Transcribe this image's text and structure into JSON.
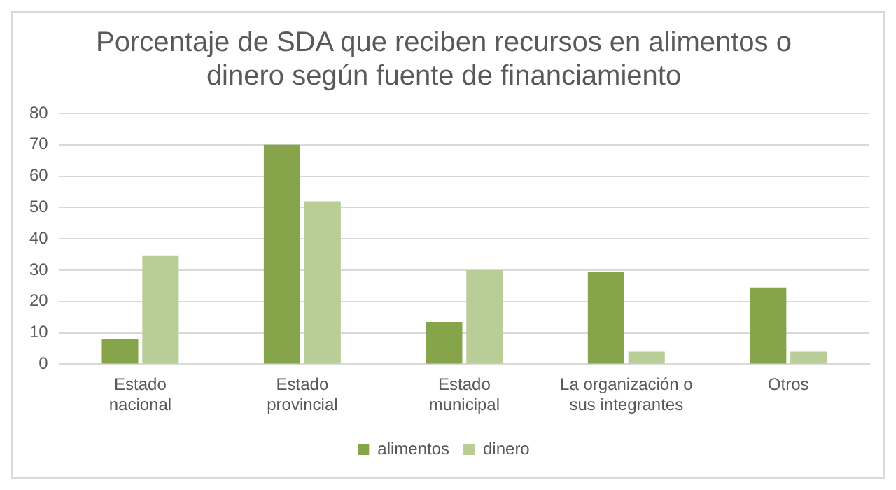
{
  "chart_data": {
    "type": "bar",
    "title": "Porcentaje de SDA que reciben recursos en alimentos o dinero según fuente de financiamiento",
    "categories": [
      "Estado nacional",
      "Estado provincial",
      "Estado municipal",
      "La organización o sus integrantes",
      "Otros"
    ],
    "series": [
      {
        "name": "alimentos",
        "color": "#86a44a",
        "values": [
          8,
          70,
          13.5,
          29.5,
          24.5
        ]
      },
      {
        "name": "dinero",
        "color": "#b8ce96",
        "values": [
          34.5,
          52,
          30,
          4,
          4
        ]
      }
    ],
    "ylim": [
      0,
      80
    ],
    "yticks": [
      0,
      10,
      20,
      30,
      40,
      50,
      60,
      70,
      80
    ],
    "grid": "y",
    "legend": "bottom"
  }
}
